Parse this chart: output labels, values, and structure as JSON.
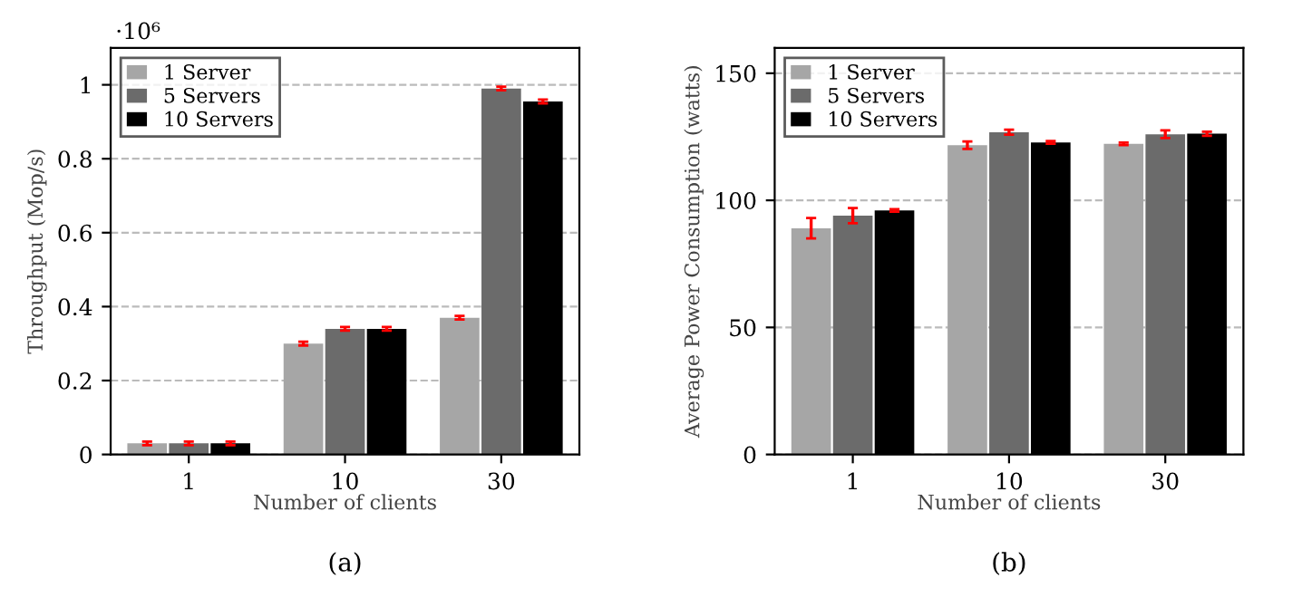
{
  "chart_data": [
    {
      "type": "bar",
      "xlabel": "Number of clients",
      "ylabel": "Throughput (Mop/s)",
      "categories": [
        "1",
        "10",
        "30"
      ],
      "series": [
        {
          "name": "1 Server",
          "color": "#a6a6a6",
          "values": [
            0.03,
            0.3,
            0.37
          ],
          "errors": [
            0.005,
            0.005,
            0.005
          ]
        },
        {
          "name": "5 Servers",
          "color": "#6b6b6b",
          "values": [
            0.03,
            0.34,
            0.99
          ],
          "errors": [
            0.005,
            0.005,
            0.005
          ]
        },
        {
          "name": "10 Servers",
          "color": "#000000",
          "values": [
            0.03,
            0.34,
            0.955
          ],
          "errors": [
            0.005,
            0.005,
            0.005
          ]
        }
      ],
      "ylim": [
        0,
        1.1
      ],
      "yticks": [
        0,
        0.2,
        0.4,
        0.6,
        0.8,
        1
      ],
      "grid": "y",
      "legend": "top left",
      "annotations": [
        "·10⁶",
        "(a)"
      ]
    },
    {
      "type": "bar",
      "xlabel": "Number of clients",
      "ylabel": "Average Power Consumption (watts)",
      "categories": [
        "1",
        "10",
        "30"
      ],
      "series": [
        {
          "name": "1 Server",
          "color": "#a6a6a6",
          "values": [
            89,
            121.7,
            122.2
          ],
          "errors": [
            4,
            1.5,
            0.5
          ]
        },
        {
          "name": "5 Servers",
          "color": "#6b6b6b",
          "values": [
            94,
            126.8,
            126
          ],
          "errors": [
            3,
            1,
            1.5
          ]
        },
        {
          "name": "10 Servers",
          "color": "#000000",
          "values": [
            96,
            122.8,
            126.2
          ],
          "errors": [
            0.5,
            0.5,
            0.8
          ]
        }
      ],
      "ylim": [
        0,
        160
      ],
      "yticks": [
        0,
        50,
        100,
        150
      ],
      "grid": "y",
      "legend": "top left",
      "annotations": [
        "(b)"
      ]
    }
  ]
}
